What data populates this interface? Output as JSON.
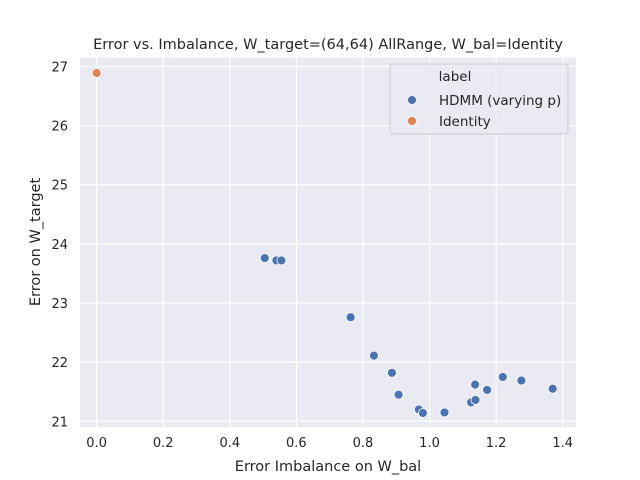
{
  "chart_data": {
    "type": "scatter",
    "title": "Error vs. Imbalance, W_target=(64,64) AllRange, W_bal=Identity",
    "xlabel": "Error Imbalance on W_bal",
    "ylabel": "Error on W_target",
    "xlim": [
      -0.05,
      1.44
    ],
    "ylim": [
      20.9,
      27.15
    ],
    "xticks": [
      0.0,
      0.2,
      0.4,
      0.6,
      0.8,
      1.0,
      1.2,
      1.4
    ],
    "xtick_labels": [
      "0.0",
      "0.2",
      "0.4",
      "0.6",
      "0.8",
      "1.0",
      "1.2",
      "1.4"
    ],
    "yticks": [
      21,
      22,
      23,
      24,
      25,
      26,
      27
    ],
    "ytick_labels": [
      "21",
      "22",
      "23",
      "24",
      "25",
      "26",
      "27"
    ],
    "grid": true,
    "legend": {
      "title": "label",
      "placement": "top-right",
      "entries": [
        "HDMM (varying p)",
        "Identity"
      ]
    },
    "series": [
      {
        "name": "HDMM (varying p)",
        "color": "#4c72b0",
        "points": [
          [
            0.505,
            23.76
          ],
          [
            0.54,
            23.72
          ],
          [
            0.555,
            23.72
          ],
          [
            0.763,
            22.76
          ],
          [
            0.833,
            22.11
          ],
          [
            0.887,
            21.82
          ],
          [
            0.907,
            21.45
          ],
          [
            0.968,
            21.2
          ],
          [
            0.98,
            21.14
          ],
          [
            1.045,
            21.15
          ],
          [
            1.125,
            21.32
          ],
          [
            1.138,
            21.36
          ],
          [
            1.137,
            21.62
          ],
          [
            1.173,
            21.53
          ],
          [
            1.22,
            21.75
          ],
          [
            1.276,
            21.69
          ],
          [
            1.37,
            21.55
          ]
        ]
      },
      {
        "name": "Identity",
        "color": "#dd8452",
        "points": [
          [
            0.0,
            26.89
          ]
        ]
      }
    ]
  }
}
